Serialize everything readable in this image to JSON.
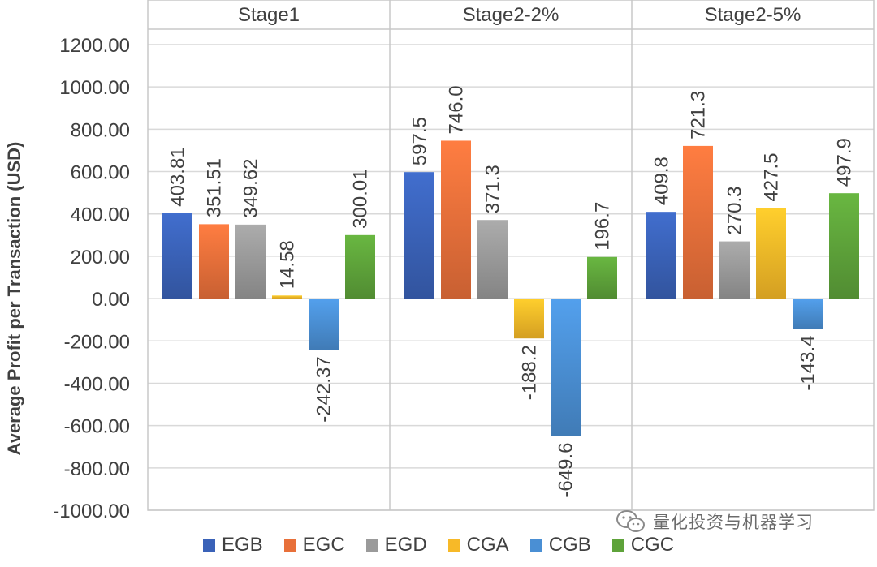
{
  "chart_data": {
    "type": "bar",
    "panels": [
      "Stage1",
      "Stage2-2%",
      "Stage2-5%"
    ],
    "series": [
      {
        "name": "EGB",
        "color": "#3a62b8",
        "values": [
          403.81,
          597.5,
          409.8
        ],
        "labels": [
          "403.81",
          "597.5",
          "409.8"
        ]
      },
      {
        "name": "EGC",
        "color": "#e8703a",
        "values": [
          351.51,
          746.0,
          721.3
        ],
        "labels": [
          "351.51",
          "746.0",
          "721.3"
        ]
      },
      {
        "name": "EGD",
        "color": "#9a9a9a",
        "values": [
          349.62,
          371.3,
          270.3
        ],
        "labels": [
          "349.62",
          "371.3",
          "270.3"
        ]
      },
      {
        "name": "CGA",
        "color": "#f7b928",
        "values": [
          14.58,
          -188.2,
          427.5
        ],
        "labels": [
          "14.58",
          "-188.2",
          "427.5"
        ]
      },
      {
        "name": "CGB",
        "color": "#4a8fd4",
        "values": [
          -242.37,
          -649.6,
          -143.4
        ],
        "labels": [
          "-242.37",
          "-649.6",
          "-143.4"
        ]
      },
      {
        "name": "CGC",
        "color": "#5ea33a",
        "values": [
          300.01,
          196.7,
          497.9
        ],
        "labels": [
          "300.01",
          "196.7",
          "497.9"
        ]
      }
    ],
    "ylabel": "Average Profit per Transaction (USD)",
    "ylim": [
      -1000,
      1200
    ],
    "yticks": [
      {
        "value": 1200,
        "label": "1200.00"
      },
      {
        "value": 1000,
        "label": "1000.00"
      },
      {
        "value": 800,
        "label": "800.00"
      },
      {
        "value": 600,
        "label": "600.00"
      },
      {
        "value": 400,
        "label": "400.00"
      },
      {
        "value": 200,
        "label": "200.00"
      },
      {
        "value": 0,
        "label": "0.00"
      },
      {
        "value": -200,
        "label": "-200.00"
      },
      {
        "value": -400,
        "label": "-400.00"
      },
      {
        "value": -600,
        "label": "-600.00"
      },
      {
        "value": -800,
        "label": "-800.00"
      },
      {
        "value": -1000,
        "label": "-1000.00"
      }
    ],
    "grid": true,
    "legend_position": "bottom"
  },
  "watermark": {
    "text": "量化投资与机器学习",
    "icon": "wechat-icon"
  }
}
